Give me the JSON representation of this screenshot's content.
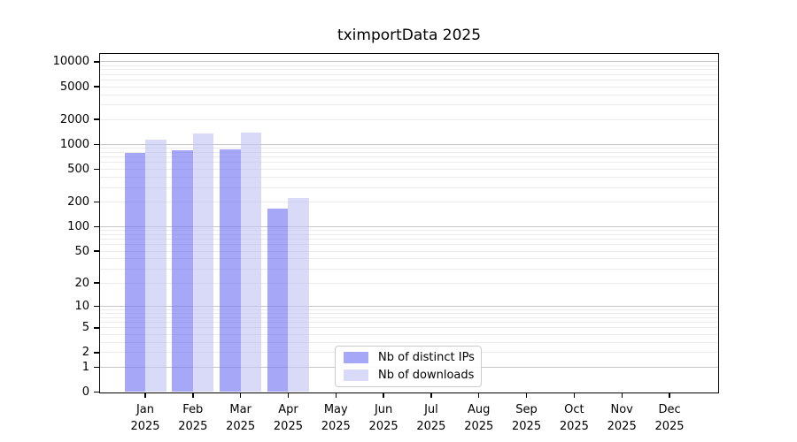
{
  "chart_data": {
    "type": "bar",
    "title": "tximportData 2025",
    "categories": [
      "Jan",
      "Feb",
      "Mar",
      "Apr",
      "May",
      "Jun",
      "Jul",
      "Aug",
      "Sep",
      "Oct",
      "Nov",
      "Dec"
    ],
    "x_tick_year": "2025",
    "series": [
      {
        "name": "Nb of distinct IPs",
        "color": "#a7a7f7",
        "fill": "rgba(113,113,242,0.62)",
        "values": [
          777,
          857,
          878,
          166,
          null,
          null,
          null,
          null,
          null,
          null,
          null,
          null
        ]
      },
      {
        "name": "Nb of downloads",
        "color": "#d9d9f8",
        "fill": "rgba(194,194,244,0.62)",
        "values": [
          1125,
          1357,
          1381,
          224,
          null,
          null,
          null,
          null,
          null,
          null,
          null,
          null
        ]
      }
    ],
    "yscale": "log1p",
    "ylim": [
      0,
      12600
    ],
    "yticks": [
      10000,
      5000,
      2000,
      1000,
      500,
      200,
      100,
      50,
      20,
      10,
      5,
      2,
      1,
      0
    ],
    "grid": "horizontal",
    "grid_major_color": "#c6c6c6",
    "grid_minor_color": "#ebebeb",
    "legend_position": "inside-bottom-center",
    "xlabel": "",
    "ylabel": ""
  }
}
